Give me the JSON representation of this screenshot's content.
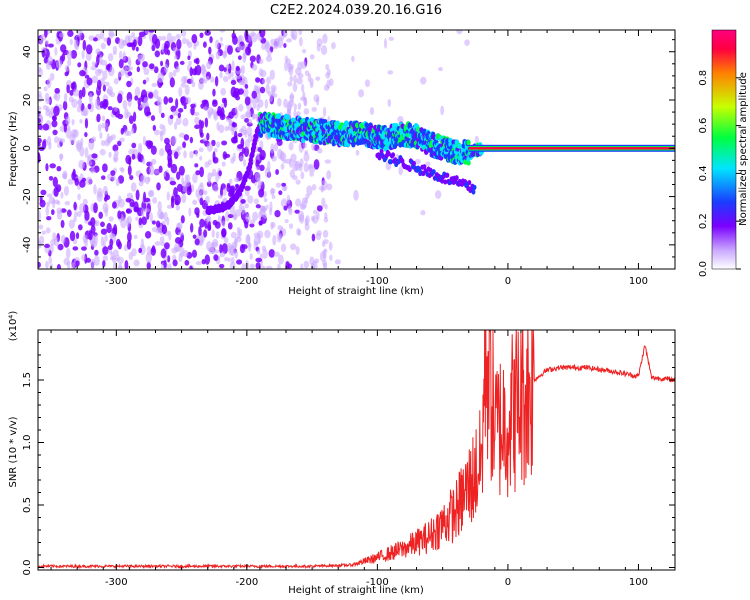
{
  "chart_data": [
    {
      "type": "heatmap",
      "title": "C2E2.2024.039.20.16.G16",
      "xlabel": "Height of straight line (km)",
      "ylabel": "Frequency (Hz)",
      "xlim": [
        -360,
        128
      ],
      "ylim": [
        -50,
        49
      ],
      "xticks": [
        -300,
        -200,
        -100,
        0,
        100
      ],
      "yticks": [
        -40,
        -20,
        0,
        20,
        40
      ],
      "colorbar": {
        "label": "Normalized spectral amplitude",
        "range": [
          0,
          1
        ],
        "ticks": [
          "0.0",
          "0.2",
          "0.4",
          "0.6",
          "0.8"
        ],
        "colors": [
          "#ffffff",
          "#c9a6ff",
          "#7a00ff",
          "#1a3cff",
          "#00e5ff",
          "#00ff40",
          "#c8ff00",
          "#ff8000",
          "#ff0040"
        ]
      },
      "carrier_trace": [
        {
          "x": -230,
          "y": -26
        },
        {
          "x": -215,
          "y": -24
        },
        {
          "x": -205,
          "y": -18
        },
        {
          "x": -198,
          "y": -8
        },
        {
          "x": -193,
          "y": 5
        },
        {
          "x": -190,
          "y": 10
        },
        {
          "x": -175,
          "y": 9
        },
        {
          "x": -160,
          "y": 8
        },
        {
          "x": -145,
          "y": 7
        },
        {
          "x": -130,
          "y": 6
        },
        {
          "x": -110,
          "y": 6
        },
        {
          "x": -95,
          "y": 4
        },
        {
          "x": -80,
          "y": 6
        },
        {
          "x": -70,
          "y": 5
        },
        {
          "x": -60,
          "y": 2
        },
        {
          "x": -45,
          "y": -1
        },
        {
          "x": -30,
          "y": -2
        },
        {
          "x": -20,
          "y": 0
        },
        {
          "x": -10,
          "y": 0
        },
        {
          "x": 0,
          "y": 0
        },
        {
          "x": 50,
          "y": 0
        },
        {
          "x": 100,
          "y": 0
        },
        {
          "x": 128,
          "y": 0
        }
      ]
    },
    {
      "type": "line",
      "xlabel": "Height of straight line (km)",
      "ylabel": "SNR (10 * v/v)",
      "y_multiplier": "(x10⁴)",
      "xlim": [
        -360,
        128
      ],
      "ylim": [
        -0.02,
        1.9
      ],
      "xticks": [
        -300,
        -200,
        -100,
        0,
        100
      ],
      "yticks": [
        0.0,
        0.5,
        1.0,
        1.5
      ],
      "color": "#ee2222",
      "series": [
        {
          "x": [
            -360,
            -300,
            -200,
            -150,
            -120,
            -100,
            -80,
            -60,
            -40,
            -30,
            -20,
            -17,
            -10,
            0,
            10,
            20,
            30,
            40,
            60,
            80,
            100,
            105,
            110,
            128
          ],
          "y": [
            0.01,
            0.01,
            0.01,
            0.01,
            0.02,
            0.08,
            0.15,
            0.25,
            0.45,
            0.65,
            0.85,
            1.85,
            1.1,
            1.2,
            1.35,
            1.5,
            1.58,
            1.6,
            1.6,
            1.57,
            1.53,
            1.78,
            1.52,
            1.5
          ]
        }
      ]
    }
  ]
}
